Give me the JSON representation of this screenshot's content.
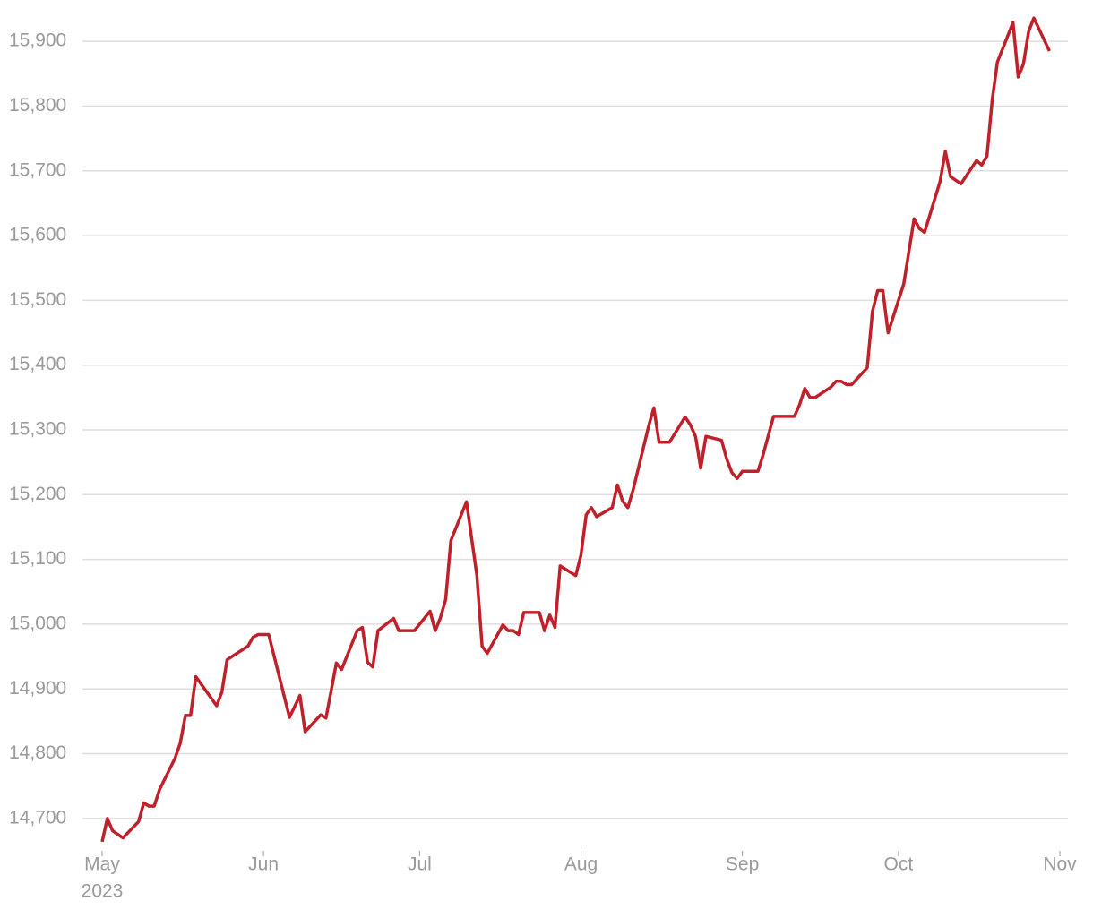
{
  "chart_data": {
    "type": "line",
    "x_year_label": "2023",
    "xlim": [
      0,
      184
    ],
    "xticks": [
      {
        "value": 0,
        "label": "May"
      },
      {
        "value": 31,
        "label": "Jun"
      },
      {
        "value": 61,
        "label": "Jul"
      },
      {
        "value": 92,
        "label": "Aug"
      },
      {
        "value": 123,
        "label": "Sep"
      },
      {
        "value": 153,
        "label": "Oct"
      },
      {
        "value": 184,
        "label": "Nov"
      }
    ],
    "ylim": [
      14650,
      15950
    ],
    "yticks": [
      {
        "value": 14700,
        "label": "14,700"
      },
      {
        "value": 14800,
        "label": "14,800"
      },
      {
        "value": 14900,
        "label": "14,900"
      },
      {
        "value": 15000,
        "label": "15,000"
      },
      {
        "value": 15100,
        "label": "15,100"
      },
      {
        "value": 15200,
        "label": "15,200"
      },
      {
        "value": 15300,
        "label": "15,300"
      },
      {
        "value": 15400,
        "label": "15,400"
      },
      {
        "value": 15500,
        "label": "15,500"
      },
      {
        "value": 15600,
        "label": "15,600"
      },
      {
        "value": 15700,
        "label": "15,700"
      },
      {
        "value": 15800,
        "label": "15,800"
      },
      {
        "value": 15900,
        "label": "15,900"
      }
    ],
    "grid": true,
    "x": [
      0,
      1,
      2,
      4,
      7,
      8,
      9,
      10,
      11,
      14,
      15,
      16,
      17,
      18,
      22,
      23,
      24,
      28,
      29,
      30,
      32,
      36,
      38,
      39,
      42,
      43,
      44,
      45,
      46,
      49,
      50,
      51,
      52,
      53,
      56,
      57,
      60,
      63,
      64,
      65,
      66,
      67,
      70,
      72,
      73,
      74,
      77,
      78,
      79,
      80,
      81,
      84,
      85,
      86,
      87,
      88,
      91,
      92,
      93,
      94,
      95,
      98,
      99,
      100,
      101,
      102,
      105,
      106,
      107,
      109,
      112,
      113,
      114,
      115,
      116,
      119,
      120,
      121,
      122,
      123,
      126,
      127,
      129,
      133,
      134,
      135,
      136,
      137,
      140,
      141,
      142,
      143,
      144,
      147,
      148,
      149,
      150,
      151,
      154,
      156,
      157,
      158,
      161,
      162,
      163,
      165,
      168,
      169,
      170,
      171,
      172,
      175,
      176,
      177,
      178,
      179,
      182
    ],
    "series": [
      {
        "color": "#c0202a",
        "values": [
          14664,
          14700,
          14681,
          14670,
          14695,
          14724,
          14719,
          14719,
          14744,
          14793,
          14816,
          14859,
          14859,
          14919,
          14874,
          14895,
          14945,
          14966,
          14980,
          14984,
          14984,
          14856,
          14890,
          14834,
          14860,
          14855,
          14897,
          14940,
          14930,
          14990,
          14995,
          14941,
          14934,
          14990,
          15009,
          14990,
          14990,
          15020,
          14990,
          15010,
          15038,
          15129,
          15189,
          15075,
          14966,
          14955,
          14999,
          14990,
          14990,
          14984,
          15018,
          15018,
          14990,
          15014,
          14995,
          15090,
          15075,
          15107,
          15169,
          15180,
          15166,
          15180,
          15215,
          15190,
          15180,
          15207,
          15306,
          15334,
          15281,
          15281,
          15320,
          15308,
          15290,
          15241,
          15290,
          15284,
          15255,
          15234,
          15225,
          15236,
          15236,
          15262,
          15321,
          15321,
          15339,
          15364,
          15350,
          15350,
          15366,
          15375,
          15375,
          15370,
          15370,
          15396,
          15483,
          15515,
          15515,
          15450,
          15525,
          15626,
          15611,
          15605,
          15684,
          15730,
          15691,
          15680,
          15716,
          15709,
          15723,
          15809,
          15868,
          15929,
          15845,
          15865,
          15915,
          15936,
          15885
        ]
      }
    ]
  }
}
